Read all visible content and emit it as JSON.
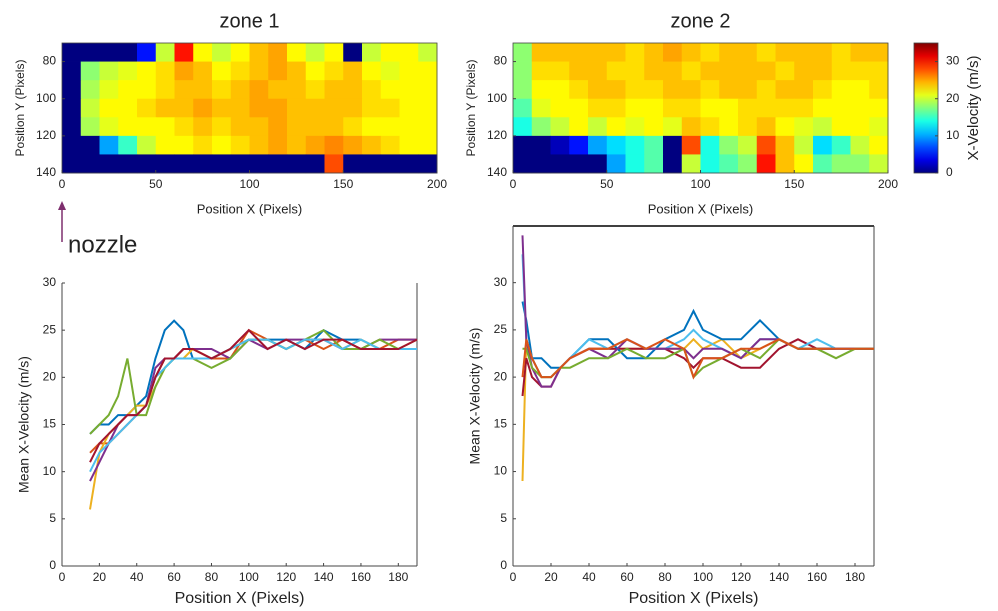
{
  "chart_data": [
    {
      "type": "heatmap",
      "title": "zone 1",
      "xlabel": "Position X (Pixels)",
      "ylabel": "Position Y (Pixels)",
      "annotation": "nozzle",
      "xlim": [
        0,
        200
      ],
      "ylim": [
        70,
        140
      ],
      "y_reversed": true,
      "xticks": [
        0,
        50,
        100,
        150,
        200
      ],
      "yticks": [
        80,
        100,
        120,
        140
      ],
      "clim": [
        0,
        35
      ],
      "z": [
        [
          0,
          0,
          0,
          0,
          5,
          20,
          30,
          22,
          20,
          22,
          24,
          25,
          22,
          20,
          22,
          0,
          20,
          22,
          22,
          20
        ],
        [
          0,
          18,
          20,
          21,
          22,
          23,
          25,
          24,
          22,
          23,
          24,
          25,
          24,
          22,
          23,
          24,
          22,
          21,
          22,
          22
        ],
        [
          0,
          19,
          21,
          22,
          22,
          23,
          24,
          24,
          23,
          24,
          25,
          24,
          24,
          23,
          24,
          24,
          23,
          22,
          22,
          22
        ],
        [
          0,
          20,
          22,
          22,
          23,
          24,
          24,
          25,
          24,
          24,
          25,
          25,
          24,
          24,
          24,
          24,
          23,
          23,
          22,
          22
        ],
        [
          0,
          19,
          21,
          22,
          22,
          22,
          23,
          24,
          23,
          24,
          24,
          25,
          24,
          24,
          24,
          23,
          22,
          22,
          22,
          22
        ],
        [
          0,
          0,
          10,
          15,
          20,
          22,
          22,
          23,
          22,
          23,
          24,
          25,
          24,
          25,
          26,
          25,
          24,
          23,
          22,
          22
        ],
        [
          0,
          0,
          0,
          0,
          0,
          0,
          0,
          0,
          0,
          0,
          0,
          0,
          0,
          0,
          28,
          0,
          0,
          0,
          0,
          0
        ]
      ]
    },
    {
      "type": "heatmap",
      "title": "zone 2",
      "xlabel": "Position X (Pixels)",
      "ylabel": "Position Y (Pixels)",
      "xlim": [
        0,
        200
      ],
      "ylim": [
        70,
        140
      ],
      "y_reversed": true,
      "xticks": [
        0,
        50,
        100,
        150,
        200
      ],
      "yticks": [
        80,
        100,
        120,
        140
      ],
      "clim": [
        0,
        35
      ],
      "colorbar": {
        "label": "X-Velocity (m/s)",
        "ticks": [
          0,
          10,
          20,
          30
        ]
      },
      "z": [
        [
          18,
          24,
          24,
          24,
          24,
          24,
          23,
          24,
          25,
          24,
          23,
          24,
          24,
          23,
          24,
          24,
          24,
          23,
          24,
          24
        ],
        [
          18,
          23,
          23,
          24,
          24,
          23,
          23,
          24,
          24,
          23,
          24,
          24,
          24,
          24,
          23,
          24,
          24,
          23,
          23,
          23
        ],
        [
          18,
          22,
          22,
          23,
          24,
          24,
          23,
          23,
          24,
          24,
          23,
          24,
          24,
          23,
          24,
          24,
          23,
          22,
          22,
          23
        ],
        [
          16,
          21,
          22,
          22,
          23,
          23,
          22,
          22,
          23,
          23,
          22,
          22,
          23,
          23,
          23,
          23,
          22,
          22,
          22,
          22
        ],
        [
          14,
          18,
          20,
          22,
          20,
          22,
          21,
          22,
          21,
          24,
          23,
          22,
          23,
          24,
          22,
          21,
          20,
          22,
          22,
          21
        ],
        [
          0,
          0,
          2,
          5,
          10,
          12,
          14,
          16,
          0,
          28,
          14,
          18,
          20,
          28,
          24,
          20,
          12,
          15,
          20,
          22
        ],
        [
          0,
          0,
          0,
          0,
          0,
          10,
          14,
          16,
          0,
          20,
          14,
          16,
          18,
          30,
          24,
          22,
          16,
          18,
          18,
          20
        ]
      ]
    },
    {
      "type": "line",
      "xlabel": "Position X (Pixels)",
      "ylabel": "Mean X-Velocity (m/s)",
      "xlim": [
        0,
        190
      ],
      "ylim": [
        0,
        30
      ],
      "xticks": [
        0,
        20,
        40,
        60,
        80,
        100,
        120,
        140,
        160,
        180
      ],
      "yticks": [
        0,
        5,
        10,
        15,
        20,
        25,
        30
      ],
      "x": [
        15,
        20,
        25,
        30,
        35,
        40,
        45,
        50,
        55,
        60,
        65,
        70,
        80,
        90,
        100,
        110,
        120,
        130,
        140,
        150,
        160,
        170,
        180,
        190
      ],
      "series": [
        {
          "color": "#0072bd",
          "values": [
            14,
            15,
            15,
            16,
            16,
            17,
            18,
            22,
            25,
            26,
            25,
            22,
            22,
            23,
            24,
            24,
            24,
            23,
            25,
            24,
            24,
            23,
            23,
            23
          ]
        },
        {
          "color": "#d95319",
          "values": [
            12,
            13,
            13,
            14,
            15,
            16,
            17,
            20,
            22,
            22,
            23,
            23,
            22,
            22,
            25,
            24,
            23,
            24,
            23,
            24,
            23,
            23,
            24,
            24
          ]
        },
        {
          "color": "#edb120",
          "values": [
            6,
            12,
            14,
            15,
            16,
            17,
            17,
            19,
            21,
            22,
            22,
            23,
            22,
            23,
            24,
            24,
            23,
            24,
            24,
            23,
            24,
            23,
            23,
            24
          ]
        },
        {
          "color": "#7e2f8e",
          "values": [
            9,
            11,
            13,
            15,
            16,
            16,
            17,
            21,
            22,
            22,
            23,
            23,
            23,
            22,
            24,
            23,
            24,
            24,
            24,
            23,
            23,
            24,
            24,
            24
          ]
        },
        {
          "color": "#77ac30",
          "values": [
            14,
            15,
            16,
            18,
            22,
            16,
            16,
            19,
            21,
            22,
            22,
            22,
            21,
            22,
            24,
            24,
            23,
            24,
            25,
            23,
            23,
            24,
            23,
            23
          ]
        },
        {
          "color": "#4dbeee",
          "values": [
            10,
            12,
            13,
            14,
            15,
            16,
            17,
            20,
            21,
            22,
            22,
            22,
            22,
            23,
            24,
            24,
            23,
            24,
            24,
            23,
            24,
            23,
            23,
            23
          ]
        },
        {
          "color": "#a2142f",
          "values": [
            11,
            13,
            14,
            15,
            16,
            16,
            17,
            20,
            22,
            22,
            23,
            23,
            22,
            23,
            25,
            23,
            24,
            23,
            24,
            24,
            23,
            23,
            23,
            24
          ]
        }
      ]
    },
    {
      "type": "line",
      "xlabel": "Position X (Pixels)",
      "ylabel": "Mean X-Velocity (m/s)",
      "xlim": [
        0,
        190
      ],
      "ylim": [
        0,
        36
      ],
      "xticks": [
        0,
        20,
        40,
        60,
        80,
        100,
        120,
        140,
        160,
        180
      ],
      "yticks": [
        0,
        5,
        10,
        15,
        20,
        25,
        30
      ],
      "x": [
        5,
        7,
        10,
        15,
        20,
        25,
        30,
        40,
        50,
        60,
        70,
        80,
        90,
        95,
        100,
        110,
        120,
        130,
        140,
        150,
        160,
        170,
        180,
        190
      ],
      "series": [
        {
          "color": "#edb120",
          "values": [
            9,
            24,
            22,
            20,
            20,
            21,
            22,
            23,
            23,
            23,
            23,
            23,
            23,
            24,
            23,
            24,
            22,
            23,
            24,
            23,
            23,
            23,
            23,
            23
          ]
        },
        {
          "color": "#a2142f",
          "values": [
            18,
            22,
            20,
            19,
            19,
            21,
            22,
            23,
            23,
            23,
            23,
            23,
            22,
            21,
            22,
            22,
            21,
            21,
            23,
            24,
            23,
            23,
            23,
            23
          ]
        },
        {
          "color": "#0072bd",
          "values": [
            28,
            26,
            22,
            22,
            21,
            21,
            22,
            24,
            24,
            22,
            22,
            24,
            25,
            27,
            25,
            24,
            24,
            26,
            24,
            23,
            23,
            23,
            23,
            23
          ]
        },
        {
          "color": "#4dbeee",
          "values": [
            33,
            24,
            22,
            20,
            20,
            21,
            22,
            24,
            23,
            24,
            23,
            23,
            24,
            25,
            24,
            23,
            22,
            24,
            24,
            23,
            24,
            23,
            23,
            23
          ]
        },
        {
          "color": "#7e2f8e",
          "values": [
            35,
            24,
            21,
            19,
            19,
            21,
            22,
            23,
            22,
            24,
            23,
            23,
            23,
            22,
            23,
            23,
            22,
            24,
            24,
            23,
            23,
            23,
            23,
            23
          ]
        },
        {
          "color": "#77ac30",
          "values": [
            23,
            23,
            21,
            20,
            20,
            21,
            21,
            22,
            22,
            23,
            22,
            22,
            23,
            20,
            21,
            22,
            23,
            22,
            24,
            23,
            23,
            22,
            23,
            23
          ]
        },
        {
          "color": "#d95319",
          "values": [
            20,
            24,
            22,
            20,
            20,
            21,
            22,
            23,
            23,
            24,
            23,
            24,
            23,
            20,
            22,
            22,
            23,
            23,
            24,
            23,
            23,
            23,
            23,
            23
          ]
        }
      ]
    }
  ]
}
